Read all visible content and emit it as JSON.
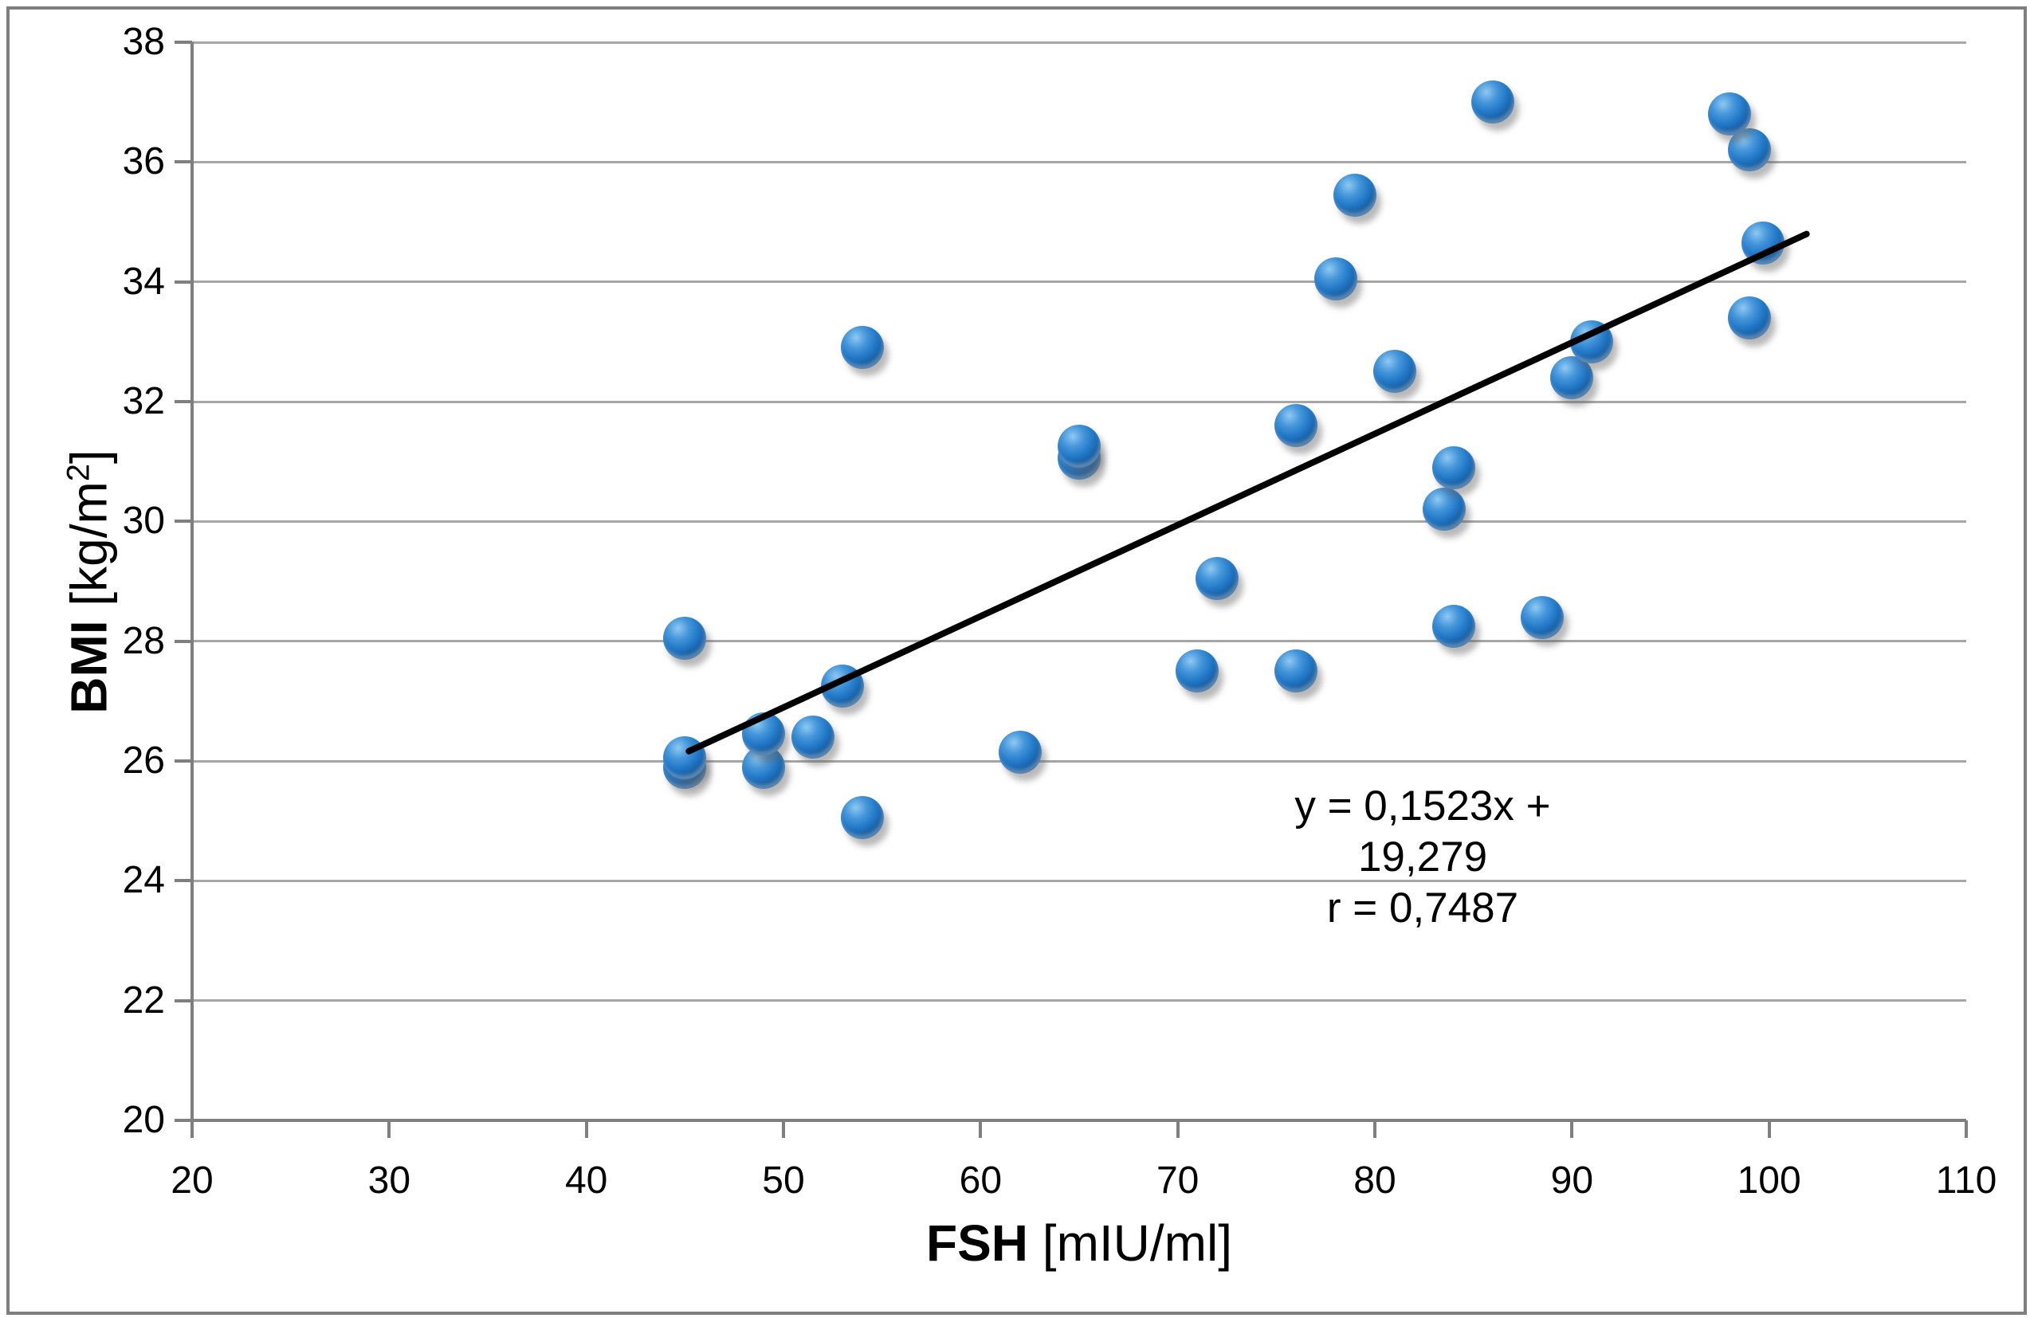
{
  "chart_data": {
    "type": "scatter",
    "title": "",
    "xlabel": {
      "bold": "FSH",
      "rest": " [mIU/ml]"
    },
    "ylabel": {
      "bold": "BMI",
      "pre": " [kg/m",
      "sup": "2",
      "post": "]"
    },
    "xlim": [
      20,
      110
    ],
    "ylim": [
      20,
      38
    ],
    "x_ticks": [
      20,
      30,
      40,
      50,
      60,
      70,
      80,
      90,
      100,
      110
    ],
    "y_ticks": [
      20,
      22,
      24,
      26,
      28,
      30,
      32,
      34,
      36,
      38
    ],
    "grid": "horizontal-only",
    "legend": false,
    "points": [
      [
        45,
        28.05
      ],
      [
        45,
        26.05
      ],
      [
        45,
        25.9
      ],
      [
        49,
        26.45
      ],
      [
        49,
        25.9
      ],
      [
        51.5,
        26.4
      ],
      [
        53,
        27.25
      ],
      [
        54,
        32.9
      ],
      [
        54,
        25.05
      ],
      [
        62,
        26.15
      ],
      [
        65,
        31.25
      ],
      [
        65,
        31.05
      ],
      [
        71,
        27.5
      ],
      [
        72,
        29.05
      ],
      [
        76,
        31.6
      ],
      [
        76,
        27.5
      ],
      [
        78,
        34.05
      ],
      [
        79,
        35.45
      ],
      [
        81,
        32.5
      ],
      [
        83.5,
        30.2
      ],
      [
        84,
        30.9
      ],
      [
        84,
        28.25
      ],
      [
        86,
        37.0
      ],
      [
        88.5,
        28.4
      ],
      [
        90,
        32.4
      ],
      [
        91,
        33.0
      ],
      [
        98,
        36.8
      ],
      [
        99,
        36.2
      ],
      [
        99,
        33.4
      ],
      [
        99.7,
        34.65
      ]
    ],
    "trendline": {
      "slope": 0.1523,
      "intercept": 19.279,
      "x_start": 45.2,
      "x_end": 101.9,
      "color": "#000000"
    },
    "annotation": {
      "equation": "y = 0,1523x + 19,279",
      "r_value": "r = 0,7487"
    },
    "colors": {
      "marker": "#1f6fc0",
      "marker_highlight": "#8ec9f2",
      "marker_dark": "#0e3c69",
      "gridline": "#a6a6a6",
      "axis": "#7f7f7f",
      "figure_border": "#7f7f7f",
      "text": "#000000"
    }
  }
}
